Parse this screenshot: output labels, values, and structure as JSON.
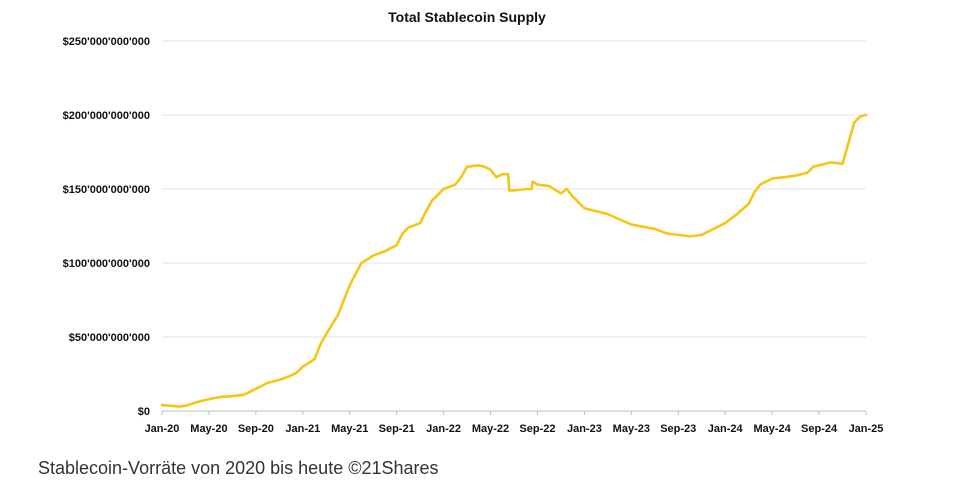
{
  "chart_data": {
    "type": "line",
    "title": "Total Stablecoin Supply",
    "xlabel": "",
    "ylabel": "",
    "ylim": [
      0,
      250000000000
    ],
    "y_ticks": [
      0,
      50000000000,
      100000000000,
      150000000000,
      200000000000,
      250000000000
    ],
    "y_tick_labels": [
      "$0",
      "$50'000'000'000",
      "$100'000'000'000",
      "$150'000'000'000",
      "$200'000'000'000",
      "$250'000'000'000"
    ],
    "x_ticks": [
      "Jan-20",
      "May-20",
      "Sep-20",
      "Jan-21",
      "May-21",
      "Sep-21",
      "Jan-22",
      "May-22",
      "Sep-22",
      "Jan-23",
      "May-23",
      "Sep-23",
      "Jan-24",
      "May-24",
      "Sep-24",
      "Jan-25"
    ],
    "x_unit": "months since Jan-20",
    "xlim": [
      0,
      60
    ],
    "grid": true,
    "legend": "none",
    "series": [
      {
        "name": "Total Stablecoin Supply",
        "color": "#F5C518",
        "x": [
          0,
          1.5,
          2,
          3,
          4,
          5,
          6,
          7,
          8,
          9,
          10,
          11,
          11.5,
          12,
          13,
          13.5,
          14,
          15,
          15.5,
          16,
          17,
          18,
          19,
          19.5,
          20,
          20.5,
          21,
          22,
          22.5,
          23,
          24,
          25,
          25.5,
          26,
          27,
          27.5,
          28,
          28.5,
          29,
          29.5,
          29.6,
          30,
          31,
          31.5,
          31.6,
          32,
          33,
          34,
          34.5,
          35,
          36,
          38,
          40,
          42,
          43,
          44,
          45,
          46,
          47,
          48,
          49,
          50,
          50.5,
          51,
          52,
          53,
          54,
          55,
          55.5,
          56,
          57,
          58,
          59,
          59.5,
          60
        ],
        "values": [
          4000000000,
          3000000000,
          3500000000,
          6000000000,
          8000000000,
          9500000000,
          10000000000,
          11000000000,
          15000000000,
          19000000000,
          21000000000,
          24000000000,
          26000000000,
          30000000000,
          35000000000,
          45000000000,
          52000000000,
          65000000000,
          75000000000,
          85000000000,
          100000000000,
          105000000000,
          108000000000,
          110000000000,
          112000000000,
          120000000000,
          124000000000,
          127000000000,
          135000000000,
          142000000000,
          150000000000,
          153000000000,
          158000000000,
          165000000000,
          166000000000,
          165000000000,
          163000000000,
          158000000000,
          160000000000,
          160000000000,
          149000000000,
          149000000000,
          150000000000,
          150000000000,
          155000000000,
          153000000000,
          152000000000,
          147000000000,
          150000000000,
          145000000000,
          137000000000,
          133000000000,
          126000000000,
          123000000000,
          120000000000,
          119000000000,
          118000000000,
          119000000000,
          123000000000,
          127000000000,
          133000000000,
          140000000000,
          148000000000,
          153000000000,
          157000000000,
          158000000000,
          159000000000,
          161000000000,
          165000000000,
          166000000000,
          168000000000,
          167000000000,
          195000000000,
          199000000000,
          200000000000
        ]
      }
    ]
  },
  "caption": "Stablecoin-Vorräte von 2020 bis heute ©21Shares"
}
